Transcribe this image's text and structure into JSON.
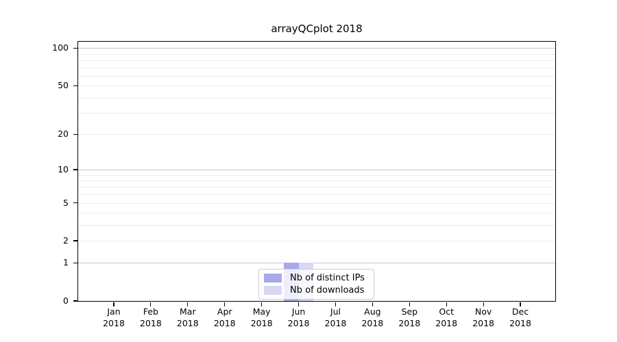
{
  "figure": {
    "background": "#ffffff",
    "frame_color": "#000000",
    "gridline_major_color": "#c6c6c6",
    "gridline_minor_color": "#ececec"
  },
  "chart_data": {
    "type": "bar",
    "title": "arrayQCplot 2018",
    "categories": [
      "Jan 2018",
      "Feb 2018",
      "Mar 2018",
      "Apr 2018",
      "May 2018",
      "Jun 2018",
      "Jul 2018",
      "Aug 2018",
      "Sep 2018",
      "Oct 2018",
      "Nov 2018",
      "Dec 2018"
    ],
    "series": [
      {
        "name": "Nb of distinct IPs",
        "color": "#a8a8ec",
        "values": [
          0,
          0,
          0,
          0,
          0,
          1,
          0,
          0,
          0,
          0,
          0,
          0
        ]
      },
      {
        "name": "Nb of downloads",
        "color": "#d8d8f4",
        "values": [
          0,
          0,
          0,
          0,
          0,
          1,
          0,
          0,
          0,
          0,
          0,
          0
        ]
      }
    ],
    "xlabel": "",
    "ylabel": "",
    "yscale": "log1p",
    "ylim": [
      0,
      112
    ],
    "yticks": [
      100,
      50,
      20,
      10,
      5,
      2,
      1,
      0
    ],
    "gridlines": {
      "major": [
        1,
        10,
        100
      ],
      "minor": [
        2,
        3,
        4,
        5,
        6,
        7,
        8,
        9,
        20,
        30,
        40,
        50,
        60,
        70,
        80,
        90
      ]
    },
    "legend": {
      "position": "lower center"
    }
  }
}
